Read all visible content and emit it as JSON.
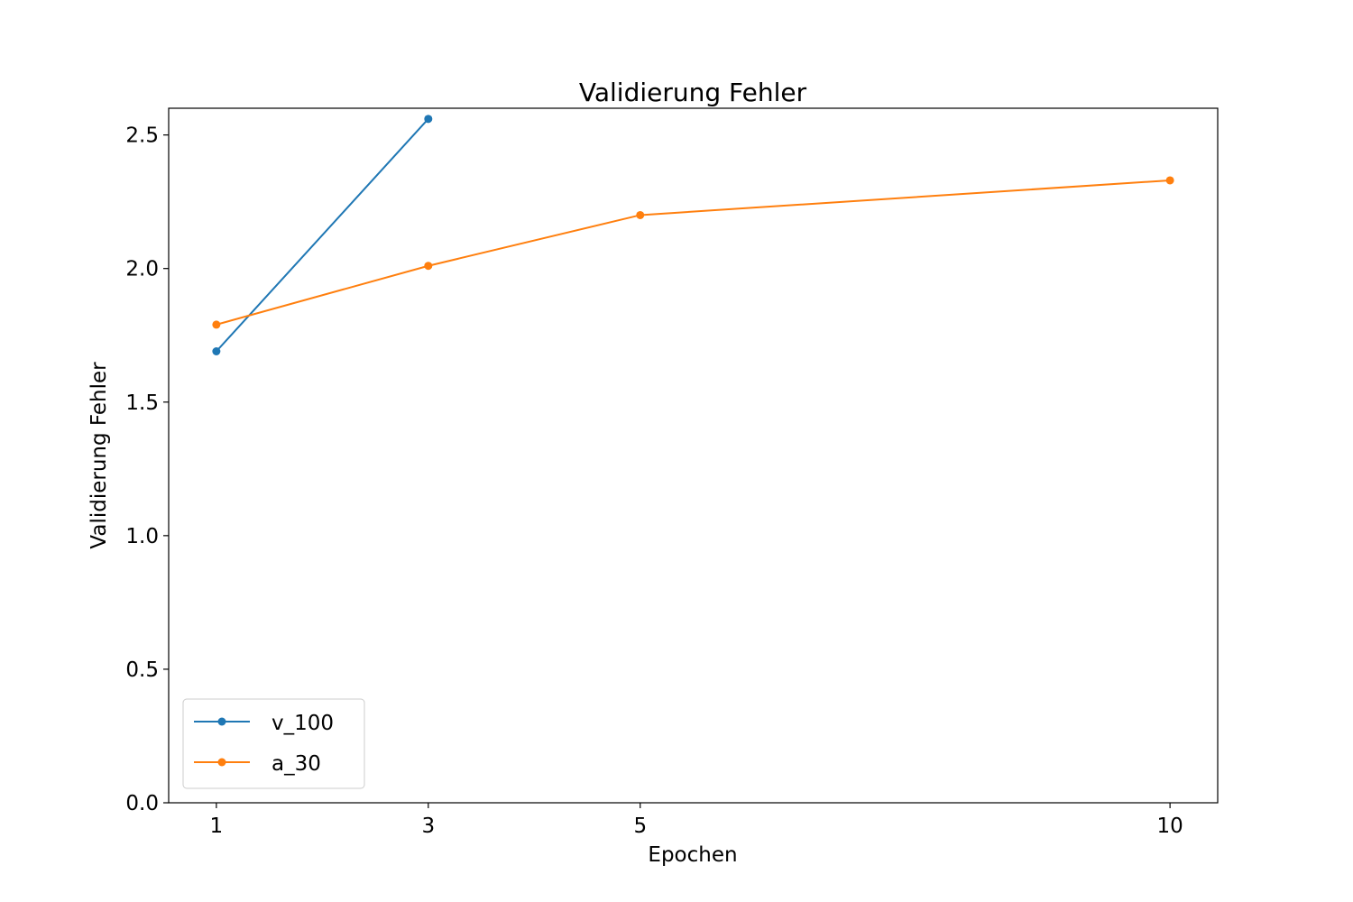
{
  "chart_data": {
    "type": "line",
    "title": "Validierung Fehler",
    "xlabel": "Epochen",
    "ylabel": "Validierung Fehler",
    "x_ticks": [
      1,
      3,
      5,
      10
    ],
    "x_tick_labels": [
      "1",
      "3",
      "5",
      "10"
    ],
    "y_ticks": [
      0.0,
      0.5,
      1.0,
      1.5,
      2.0,
      2.5
    ],
    "y_tick_labels": [
      "0.0",
      "0.5",
      "1.0",
      "1.5",
      "2.0",
      "2.5"
    ],
    "xlim": [
      0.55,
      10.45
    ],
    "ylim": [
      0,
      2.6
    ],
    "grid": false,
    "legend_position": "lower-left",
    "series": [
      {
        "name": "v_100",
        "color": "#1f77b4",
        "x": [
          1,
          3
        ],
        "y": [
          1.69,
          2.56
        ]
      },
      {
        "name": "a_30",
        "color": "#ff7f0e",
        "x": [
          1,
          3,
          5,
          10
        ],
        "y": [
          1.79,
          2.01,
          2.2,
          2.33
        ]
      }
    ]
  }
}
